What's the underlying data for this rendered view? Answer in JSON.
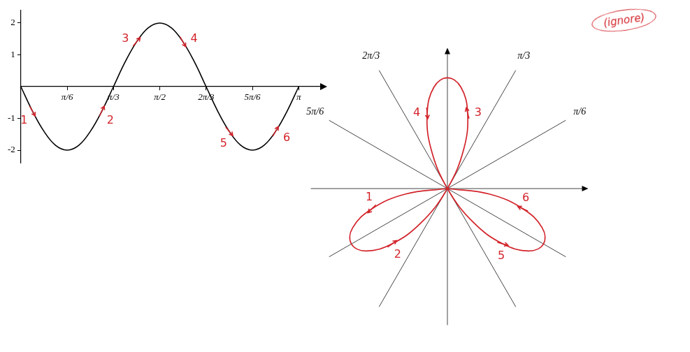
{
  "chart_data": [
    {
      "type": "line",
      "x": [
        0,
        0.1309,
        0.2618,
        0.3927,
        0.5236,
        0.6545,
        0.7854,
        0.9163,
        1.0472,
        1.1781,
        1.309,
        1.4399,
        1.5708,
        1.7017,
        1.8326,
        1.9635,
        2.0944,
        2.2253,
        2.3562,
        2.4871,
        2.618,
        2.7489,
        2.8798,
        3.0107,
        3.1416
      ],
      "values": [
        0,
        -0.77,
        -1.41,
        -1.85,
        -2,
        -1.85,
        -1.41,
        -0.77,
        0,
        0.77,
        1.41,
        1.85,
        2,
        1.85,
        1.41,
        0.77,
        0,
        -0.77,
        -1.41,
        -1.85,
        -2,
        -1.85,
        -1.41,
        -0.77,
        0
      ],
      "color": "#000000",
      "xlim": [
        0,
        3.4
      ],
      "xticks": [
        {
          "value": 0.5236,
          "label": "π/6"
        },
        {
          "value": 1.0472,
          "label": "π/3"
        },
        {
          "value": 1.5708,
          "label": "π/2"
        },
        {
          "value": 2.0944,
          "label": "2π/3"
        },
        {
          "value": 2.618,
          "label": "5π/6"
        },
        {
          "value": 3.1416,
          "label": "π"
        }
      ],
      "ylim": [
        -2.4,
        2.4
      ],
      "yticks": [
        -2,
        -1,
        1,
        2
      ],
      "grid": false,
      "annotations": [
        "1",
        "2",
        "3",
        "4",
        "5",
        "6"
      ]
    },
    {
      "type": "polar_line",
      "x": [
        0,
        0.1309,
        0.2618,
        0.3927,
        0.5236,
        0.6545,
        0.7854,
        0.9163,
        1.0472,
        1.1781,
        1.309,
        1.4399,
        1.5708,
        1.7017,
        1.8326,
        1.9635,
        2.0944,
        2.2253,
        2.3562,
        2.4871,
        2.618,
        2.7489,
        2.8798,
        3.0107,
        3.1416
      ],
      "values": [
        0,
        -0.77,
        -1.41,
        -1.85,
        -2,
        -1.85,
        -1.41,
        -0.77,
        0,
        0.77,
        1.41,
        1.85,
        2,
        1.85,
        1.41,
        0.77,
        0,
        -0.77,
        -1.41,
        -1.85,
        -2,
        -1.85,
        -1.41,
        -0.77,
        0
      ],
      "color": "#d2232a",
      "rlim": [
        0,
        2.9
      ],
      "tick_labels": false,
      "rays": [
        {
          "value": 0,
          "label": null
        },
        {
          "value": 0.5236,
          "label": "π/6"
        },
        {
          "value": 1.0472,
          "label": "π/3"
        },
        {
          "value": 1.5708,
          "label": null
        },
        {
          "value": 2.0944,
          "label": "2π/3"
        },
        {
          "value": 2.618,
          "label": "5π/6"
        }
      ],
      "annotations": [
        "1",
        "2",
        "3",
        "4",
        "5",
        "6"
      ]
    }
  ],
  "margin_text": "(ignore)"
}
